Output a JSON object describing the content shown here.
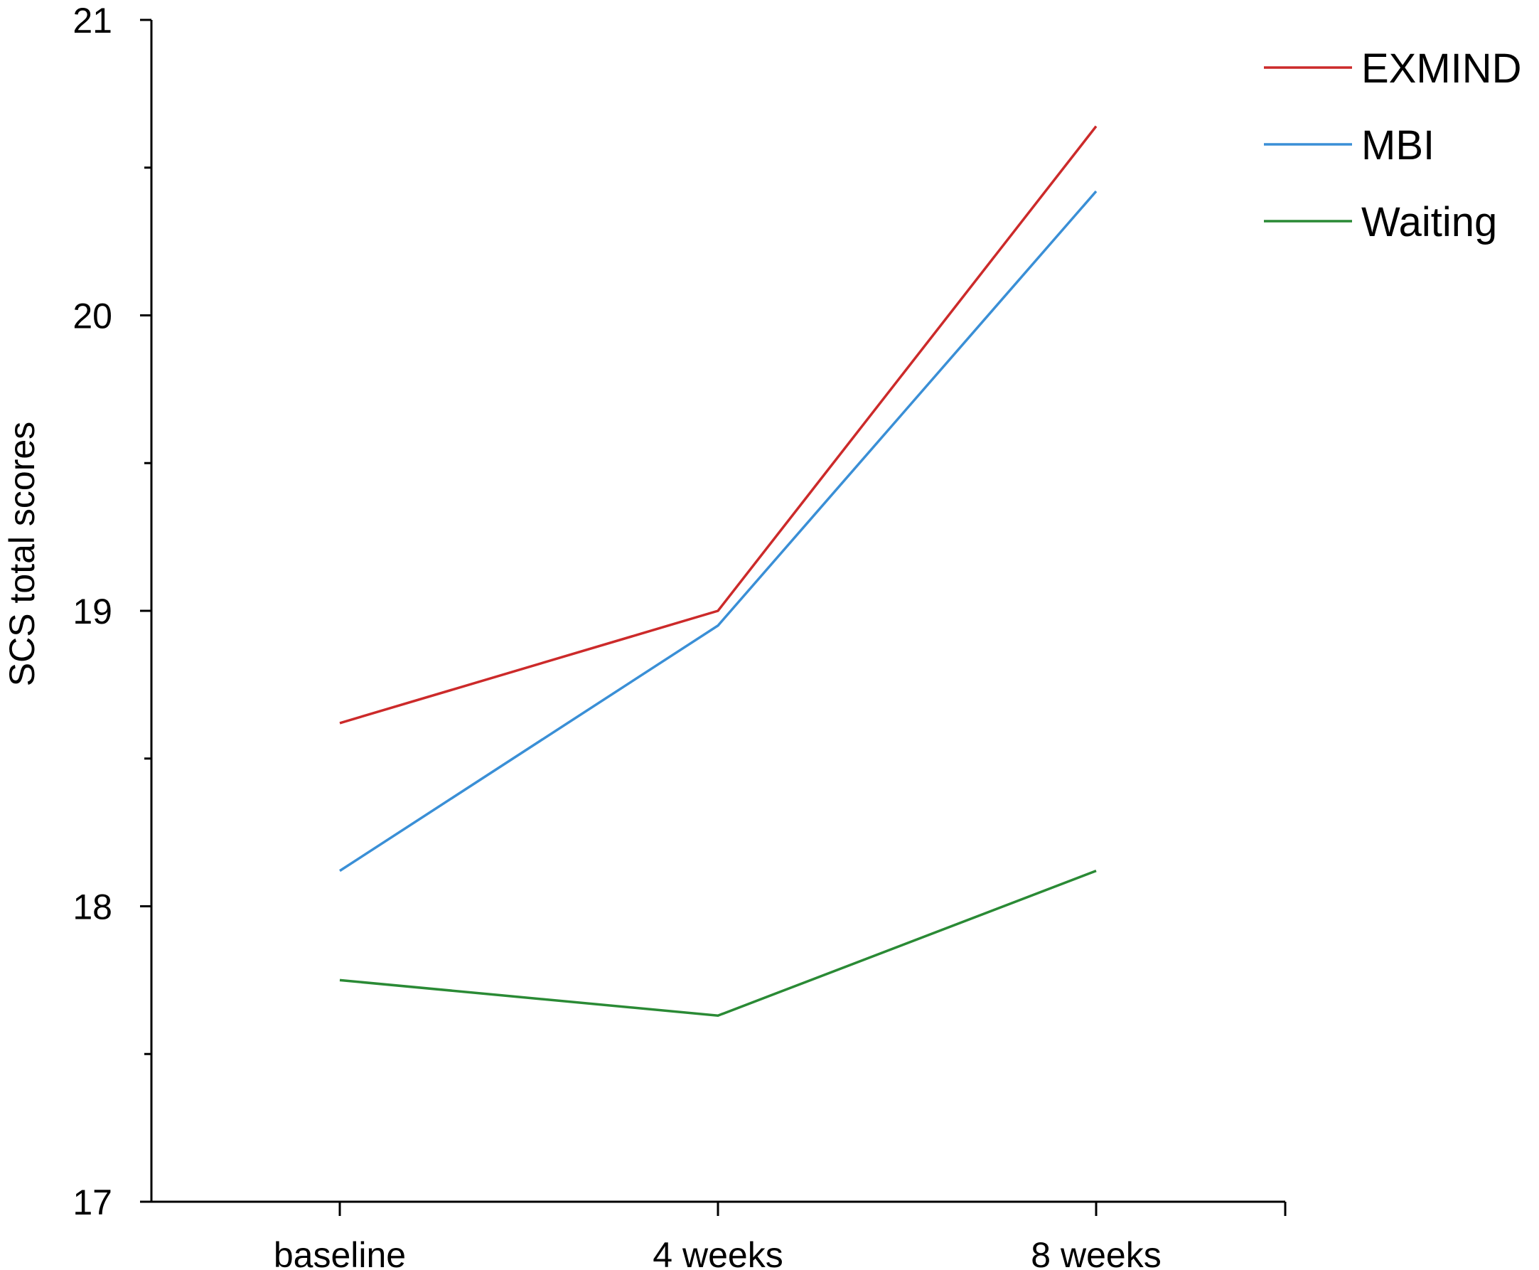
{
  "chart_data": {
    "type": "line",
    "title": "",
    "xlabel": "",
    "ylabel": "SCS total scores",
    "categories": [
      "baseline",
      "4 weeks",
      "8 weeks"
    ],
    "ylim": [
      17,
      21
    ],
    "yticks_major": [
      17,
      18,
      19,
      20,
      21
    ],
    "yticks_minor": [
      17.5,
      18.5,
      19.5,
      20.5
    ],
    "grid": false,
    "legend_position": "top-right",
    "series": [
      {
        "name": "EXMIND",
        "color": "#cc2a2a",
        "values": [
          18.62,
          19.0,
          20.64
        ]
      },
      {
        "name": "MBI",
        "color": "#3a8fd6",
        "values": [
          18.12,
          18.95,
          20.42
        ]
      },
      {
        "name": "Waiting",
        "color": "#2a8a35",
        "values": [
          17.75,
          17.63,
          18.12
        ]
      }
    ]
  }
}
